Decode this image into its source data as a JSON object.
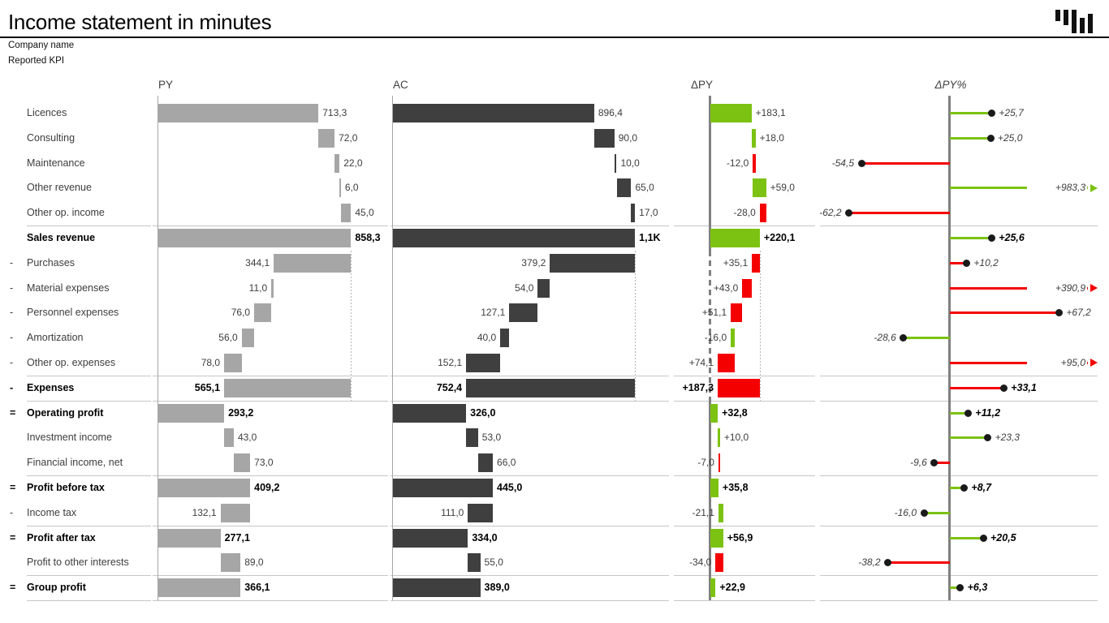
{
  "header": {
    "title": "Income statement in minutes",
    "company": "Company name",
    "kpi": "Reported KPI"
  },
  "columns": {
    "py": "PY",
    "ac": "AC",
    "dpy": "ΔPY",
    "dpy_pct": "ΔPY%"
  },
  "colors": {
    "py_bar": "#a6a6a6",
    "ac_bar": "#3f3f3f",
    "good": "#7cc212",
    "bad": "#f40000",
    "axis": "#808080",
    "separator": "#c6c6c6",
    "dot": "#1a1a1a"
  },
  "chart_data": {
    "type": "bar",
    "subtype": "waterfall-income-statement",
    "columns": [
      "PY",
      "AC",
      "ΔPY",
      "ΔPY%"
    ],
    "rows": [
      {
        "label": "Licences",
        "prefix": "",
        "total": false,
        "kind": "add",
        "py": {
          "v": 713.3,
          "label": "713,3"
        },
        "ac": {
          "v": 896.4,
          "label": "896,4"
        },
        "dpy": {
          "v": 183.1,
          "label": "+183,1",
          "sentiment": "good"
        },
        "dpy_pct": {
          "v": 25.7,
          "label": "+25,7",
          "sentiment": "good",
          "clipped": false
        }
      },
      {
        "label": "Consulting",
        "prefix": "",
        "total": false,
        "kind": "add",
        "py": {
          "v": 72.0,
          "label": "72,0"
        },
        "ac": {
          "v": 90.0,
          "label": "90,0"
        },
        "dpy": {
          "v": 18.0,
          "label": "+18,0",
          "sentiment": "good"
        },
        "dpy_pct": {
          "v": 25.0,
          "label": "+25,0",
          "sentiment": "good",
          "clipped": false
        }
      },
      {
        "label": "Maintenance",
        "prefix": "",
        "total": false,
        "kind": "add",
        "py": {
          "v": 22.0,
          "label": "22,0"
        },
        "ac": {
          "v": 10.0,
          "label": "10,0"
        },
        "dpy": {
          "v": -12.0,
          "label": "-12,0",
          "sentiment": "bad"
        },
        "dpy_pct": {
          "v": -54.5,
          "label": "-54,5",
          "sentiment": "bad",
          "clipped": false
        }
      },
      {
        "label": "Other revenue",
        "prefix": "",
        "total": false,
        "kind": "add",
        "py": {
          "v": 6.0,
          "label": "6,0"
        },
        "ac": {
          "v": 65.0,
          "label": "65,0"
        },
        "dpy": {
          "v": 59.0,
          "label": "+59,0",
          "sentiment": "good"
        },
        "dpy_pct": {
          "v": 983.3,
          "label": "+983,3",
          "sentiment": "good",
          "clipped": true
        }
      },
      {
        "label": "Other op. income",
        "prefix": "",
        "total": false,
        "kind": "add",
        "py": {
          "v": 45.0,
          "label": "45,0"
        },
        "ac": {
          "v": 17.0,
          "label": "17,0"
        },
        "dpy": {
          "v": -28.0,
          "label": "-28,0",
          "sentiment": "bad"
        },
        "dpy_pct": {
          "v": -62.2,
          "label": "-62,2",
          "sentiment": "bad",
          "clipped": false
        }
      },
      {
        "label": "Sales revenue",
        "prefix": "",
        "total": true,
        "kind": "total",
        "py": {
          "v": 858.3,
          "label": "858,3"
        },
        "ac": {
          "v": 1078.4,
          "label": "1,1K"
        },
        "dpy": {
          "v": 220.1,
          "label": "+220,1",
          "sentiment": "good"
        },
        "dpy_pct": {
          "v": 25.6,
          "label": "+25,6",
          "sentiment": "good",
          "clipped": false
        }
      },
      {
        "label": "Purchases",
        "prefix": "-",
        "total": false,
        "kind": "sub",
        "py": {
          "v": 344.1,
          "label": "344,1"
        },
        "ac": {
          "v": 379.2,
          "label": "379,2"
        },
        "dpy": {
          "v": 35.1,
          "label": "+35,1",
          "sentiment": "bad"
        },
        "dpy_pct": {
          "v": 10.2,
          "label": "+10,2",
          "sentiment": "bad",
          "clipped": false
        }
      },
      {
        "label": "Material expenses",
        "prefix": "-",
        "total": false,
        "kind": "sub",
        "py": {
          "v": 11.0,
          "label": "11,0"
        },
        "ac": {
          "v": 54.0,
          "label": "54,0"
        },
        "dpy": {
          "v": 43.0,
          "label": "+43,0",
          "sentiment": "bad"
        },
        "dpy_pct": {
          "v": 390.9,
          "label": "+390,9",
          "sentiment": "bad",
          "clipped": true
        }
      },
      {
        "label": "Personnel expenses",
        "prefix": "-",
        "total": false,
        "kind": "sub",
        "py": {
          "v": 76.0,
          "label": "76,0"
        },
        "ac": {
          "v": 127.1,
          "label": "127,1"
        },
        "dpy": {
          "v": 51.1,
          "label": "+51,1",
          "sentiment": "bad"
        },
        "dpy_pct": {
          "v": 67.2,
          "label": "+67,2",
          "sentiment": "bad",
          "clipped": false
        }
      },
      {
        "label": "Amortization",
        "prefix": "-",
        "total": false,
        "kind": "sub",
        "py": {
          "v": 56.0,
          "label": "56,0"
        },
        "ac": {
          "v": 40.0,
          "label": "40,0"
        },
        "dpy": {
          "v": -16.0,
          "label": "-16,0",
          "sentiment": "good"
        },
        "dpy_pct": {
          "v": -28.6,
          "label": "-28,6",
          "sentiment": "good",
          "clipped": false
        }
      },
      {
        "label": "Other op. expenses",
        "prefix": "-",
        "total": false,
        "kind": "sub",
        "py": {
          "v": 78.0,
          "label": "78,0"
        },
        "ac": {
          "v": 152.1,
          "label": "152,1"
        },
        "dpy": {
          "v": 74.1,
          "label": "+74,1",
          "sentiment": "bad"
        },
        "dpy_pct": {
          "v": 95.0,
          "label": "+95,0",
          "sentiment": "bad",
          "clipped": true
        }
      },
      {
        "label": "Expenses",
        "prefix": "-",
        "total": true,
        "kind": "totalneg",
        "py": {
          "v": 565.1,
          "label": "565,1"
        },
        "ac": {
          "v": 752.4,
          "label": "752,4"
        },
        "dpy": {
          "v": 187.3,
          "label": "+187,3",
          "sentiment": "bad"
        },
        "dpy_pct": {
          "v": 33.1,
          "label": "+33,1",
          "sentiment": "bad",
          "clipped": false
        }
      },
      {
        "label": "Operating profit",
        "prefix": "=",
        "total": true,
        "kind": "total",
        "py": {
          "v": 293.2,
          "label": "293,2"
        },
        "ac": {
          "v": 326.0,
          "label": "326,0"
        },
        "dpy": {
          "v": 32.8,
          "label": "+32,8",
          "sentiment": "good"
        },
        "dpy_pct": {
          "v": 11.2,
          "label": "+11,2",
          "sentiment": "good",
          "clipped": false
        }
      },
      {
        "label": "Investment income",
        "prefix": "",
        "total": false,
        "kind": "add",
        "py": {
          "v": 43.0,
          "label": "43,0"
        },
        "ac": {
          "v": 53.0,
          "label": "53,0"
        },
        "dpy": {
          "v": 10.0,
          "label": "+10,0",
          "sentiment": "good"
        },
        "dpy_pct": {
          "v": 23.3,
          "label": "+23,3",
          "sentiment": "good",
          "clipped": false
        }
      },
      {
        "label": "Financial income, net",
        "prefix": "",
        "total": false,
        "kind": "add",
        "py": {
          "v": 73.0,
          "label": "73,0"
        },
        "ac": {
          "v": 66.0,
          "label": "66,0"
        },
        "dpy": {
          "v": -7.0,
          "label": "-7,0",
          "sentiment": "bad"
        },
        "dpy_pct": {
          "v": -9.6,
          "label": "-9,6",
          "sentiment": "bad",
          "clipped": false
        }
      },
      {
        "label": "Profit before tax",
        "prefix": "=",
        "total": true,
        "kind": "total",
        "py": {
          "v": 409.2,
          "label": "409,2"
        },
        "ac": {
          "v": 445.0,
          "label": "445,0"
        },
        "dpy": {
          "v": 35.8,
          "label": "+35,8",
          "sentiment": "good"
        },
        "dpy_pct": {
          "v": 8.7,
          "label": "+8,7",
          "sentiment": "good",
          "clipped": false
        }
      },
      {
        "label": "Income tax",
        "prefix": "-",
        "total": false,
        "kind": "sub",
        "py": {
          "v": 132.1,
          "label": "132,1"
        },
        "ac": {
          "v": 111.0,
          "label": "111,0"
        },
        "dpy": {
          "v": -21.1,
          "label": "-21,1",
          "sentiment": "good"
        },
        "dpy_pct": {
          "v": -16.0,
          "label": "-16,0",
          "sentiment": "good",
          "clipped": false
        }
      },
      {
        "label": "Profit after tax",
        "prefix": "=",
        "total": true,
        "kind": "total",
        "py": {
          "v": 277.1,
          "label": "277,1"
        },
        "ac": {
          "v": 334.0,
          "label": "334,0"
        },
        "dpy": {
          "v": 56.9,
          "label": "+56,9",
          "sentiment": "good"
        },
        "dpy_pct": {
          "v": 20.5,
          "label": "+20,5",
          "sentiment": "good",
          "clipped": false
        }
      },
      {
        "label": "Profit to other interests",
        "prefix": "",
        "total": false,
        "kind": "add",
        "py": {
          "v": 89.0,
          "label": "89,0"
        },
        "ac": {
          "v": 55.0,
          "label": "55,0"
        },
        "dpy": {
          "v": -34.0,
          "label": "-34,0",
          "sentiment": "bad"
        },
        "dpy_pct": {
          "v": -38.2,
          "label": "-38,2",
          "sentiment": "bad",
          "clipped": false
        }
      },
      {
        "label": "Group profit",
        "prefix": "=",
        "total": true,
        "kind": "total",
        "py": {
          "v": 366.1,
          "label": "366,1"
        },
        "ac": {
          "v": 389.0,
          "label": "389,0"
        },
        "dpy": {
          "v": 22.9,
          "label": "+22,9",
          "sentiment": "good"
        },
        "dpy_pct": {
          "v": 6.3,
          "label": "+6,3",
          "sentiment": "good",
          "clipped": false
        }
      }
    ]
  }
}
